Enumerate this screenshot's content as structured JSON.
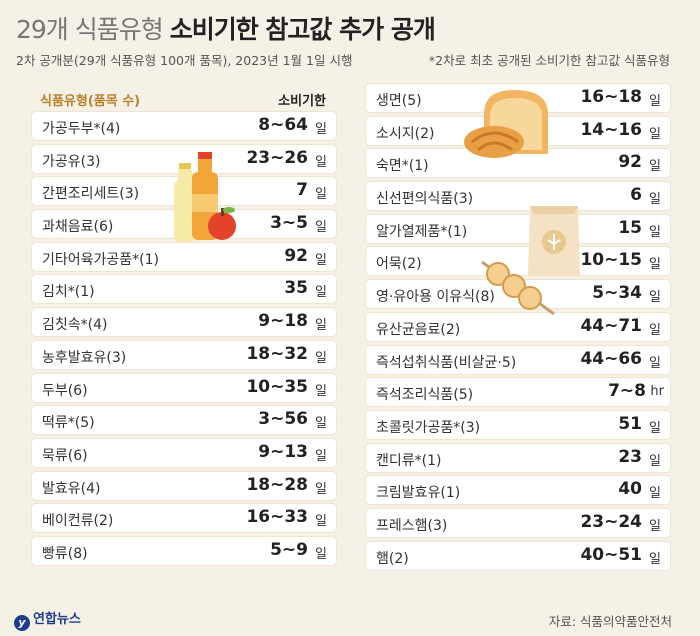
{
  "title": {
    "light": "29개 식품유형 ",
    "bold": "소비기한 참고값 추가 공개"
  },
  "subtitle": "2차 공개분(29개 식품유형 100개 품목), 2023년 1월 1일 시행",
  "footnote": "*2차로 최초 공개된 소비기한 참고값 식품유형",
  "header": {
    "category": "식품유형(품목 수)",
    "term": "소비기한"
  },
  "left_rows": [
    {
      "category": "가공두부*(4)",
      "value": "8~64",
      "unit": "일"
    },
    {
      "category": "가공유(3)",
      "value": "23~26",
      "unit": "일"
    },
    {
      "category": "간편조리세트(3)",
      "value": "7",
      "unit": "일"
    },
    {
      "category": "과채음료(6)",
      "value": "3~5",
      "unit": "일"
    },
    {
      "category": "기타어육가공품*(1)",
      "value": "92",
      "unit": "일"
    },
    {
      "category": "김치*(1)",
      "value": "35",
      "unit": "일"
    },
    {
      "category": "김칫속*(4)",
      "value": "9~18",
      "unit": "일"
    },
    {
      "category": "농후발효유(3)",
      "value": "18~32",
      "unit": "일"
    },
    {
      "category": "두부(6)",
      "value": "10~35",
      "unit": "일"
    },
    {
      "category": "떡류*(5)",
      "value": "3~56",
      "unit": "일"
    },
    {
      "category": "묵류(6)",
      "value": "9~13",
      "unit": "일"
    },
    {
      "category": "발효유(4)",
      "value": "18~28",
      "unit": "일"
    },
    {
      "category": "베이컨류(2)",
      "value": "16~33",
      "unit": "일"
    },
    {
      "category": "빵류(8)",
      "value": "5~9",
      "unit": "일"
    }
  ],
  "right_rows": [
    {
      "category": "생면(5)",
      "value": "16~18",
      "unit": "일"
    },
    {
      "category": "소시지(2)",
      "value": "14~16",
      "unit": "일"
    },
    {
      "category": "숙면*(1)",
      "value": "92",
      "unit": "일"
    },
    {
      "category": "신선편의식품(3)",
      "value": "6",
      "unit": "일"
    },
    {
      "category": "알가열제품*(1)",
      "value": "15",
      "unit": "일"
    },
    {
      "category": "어묵(2)",
      "value": "10~15",
      "unit": "일"
    },
    {
      "category": "영·유아용 이유식(8)",
      "value": "5~34",
      "unit": "일"
    },
    {
      "category": "유산균음료(2)",
      "value": "44~71",
      "unit": "일"
    },
    {
      "category": "즉석섭취식품(비살균·5)",
      "value": "44~66",
      "unit": "일"
    },
    {
      "category": "즉석조리식품(5)",
      "value": "7~8",
      "unit": "hr"
    },
    {
      "category": "초콜릿가공품*(3)",
      "value": "51",
      "unit": "일"
    },
    {
      "category": "캔디류*(1)",
      "value": "23",
      "unit": "일"
    },
    {
      "category": "크림발효유(1)",
      "value": "40",
      "unit": "일"
    },
    {
      "category": "프레스햄(3)",
      "value": "23~24",
      "unit": "일"
    },
    {
      "category": "햄(2)",
      "value": "40~51",
      "unit": "일"
    }
  ],
  "logo": {
    "mark": "y",
    "text": "연합뉴스"
  },
  "source": "자료: 식품의약품안전처",
  "icons": [
    "juice-bottles-illustration",
    "bread-illustration",
    "flour-bag-illustration",
    "fishcake-skewer-illustration"
  ]
}
